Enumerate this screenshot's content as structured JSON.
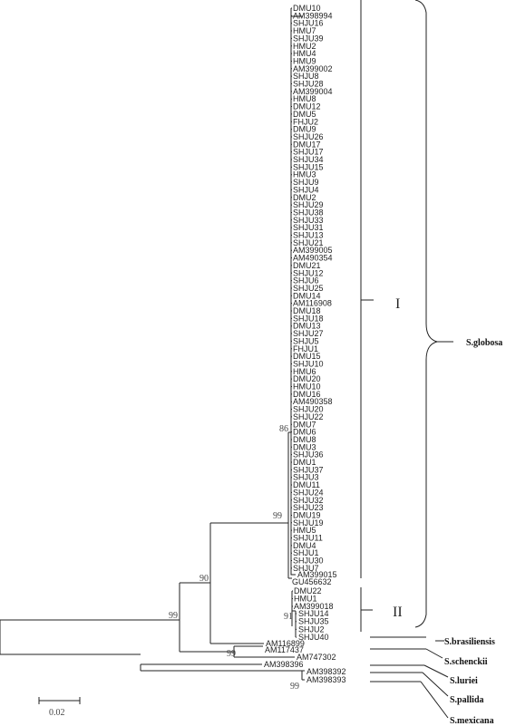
{
  "leaves_main": [
    "DMU10",
    "AM398994",
    "SHJU16",
    "HMU7",
    "SHJU39",
    "HMU2",
    "HMU4",
    "HMU9",
    "AM399002",
    "SHJU8",
    "SHJU28",
    "AM399004",
    "HMU8",
    "DMU12",
    "DMU5",
    "FHJU2",
    "DMU9",
    "SHJU26",
    "DMU17",
    "SHJU17",
    "SHJU34",
    "SHJU15",
    "HMU3",
    "SHJU9",
    "SHJU4",
    "DMU2",
    "SHJU29",
    "SHJU38",
    "SHJU33",
    "SHJU31",
    "SHJU13",
    "SHJU21",
    "AM399005",
    "AM490354",
    "DMU21",
    "SHJU12",
    "SHJU6",
    "SHJU25",
    "DMU14",
    "AM116908",
    "DMU18",
    "SHJU18",
    "DMU13",
    "SHJU27",
    "SHJU5",
    "FHJU1",
    "DMU15",
    "SHJU10",
    "HMU6",
    "DMU20",
    "HMU10",
    "DMU16",
    "AM490358",
    "SHJU20",
    "SHJU22",
    "DMU7",
    "DMU6",
    "DMU8",
    "DMU3",
    "SHJU36",
    "DMU1",
    "SHJU37",
    "SHJU3",
    "DMU11",
    "SHJU24",
    "SHJU32",
    "SHJU23",
    "DMU19",
    "SHJU19",
    "HMU5",
    "SHJU11",
    "DMU4",
    "SHJU1",
    "SHJU30",
    "SHJU7"
  ],
  "leaves_extra": [
    "AM399015",
    "GU456632"
  ],
  "leaves_clade2a": [
    "DMU22",
    "HMU1",
    "AM399018"
  ],
  "leaves_clade2b": [
    "SHJU14",
    "SHJU35",
    "SHJU2",
    "SHJU40"
  ],
  "leaves_out": {
    "brasiliensis": "AM116899",
    "schenckii_1": "AM117437",
    "schenckii_2": "AM747302",
    "luriei": "AM398396",
    "pallida": "AM398392",
    "mexicana": "AM398393"
  },
  "bootstrap": {
    "b86": "86",
    "b99_main": "99",
    "b90": "90",
    "b99_root": "99",
    "b91": "91",
    "b99_schenckii": "99",
    "b99_pallida": "99"
  },
  "clades": {
    "c1": "I",
    "c2": "II"
  },
  "species": {
    "globosa": "S.globosa",
    "brasiliensis": "S.brasiliensis",
    "schenckii": "S.schenckii",
    "luriei": "S.luriei",
    "pallida": "S.pallida",
    "mexicana": "S.mexicana"
  },
  "scale": {
    "label": "0.02"
  }
}
